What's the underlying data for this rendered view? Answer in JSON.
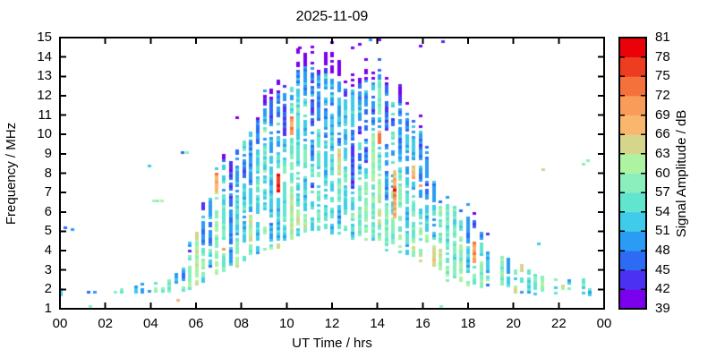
{
  "chart_data": {
    "type": "scatter",
    "title": "2025-11-09",
    "xlabel": "UT Time / hrs",
    "ylabel": "Frequency / MHz",
    "x_range": [
      0,
      24
    ],
    "y_range": [
      1,
      15
    ],
    "x_tick_labels": [
      "00",
      "02",
      "04",
      "06",
      "08",
      "10",
      "12",
      "14",
      "16",
      "18",
      "20",
      "22",
      "00"
    ],
    "y_tick_labels": [
      "1",
      "2",
      "3",
      "4",
      "5",
      "6",
      "7",
      "8",
      "9",
      "10",
      "11",
      "12",
      "13",
      "14",
      "15"
    ],
    "grid": false,
    "legend_position": "right-colorbar",
    "colorbar": {
      "label": "Signal Amplitude / dB",
      "min": 39,
      "max": 81,
      "step": 3,
      "tick_labels": [
        "39",
        "42",
        "45",
        "48",
        "51",
        "54",
        "57",
        "60",
        "63",
        "66",
        "69",
        "72",
        "75",
        "78",
        "81"
      ],
      "colors": [
        "#7b00ee",
        "#4b31f2",
        "#2e6bf5",
        "#2b9cf3",
        "#3fcbe9",
        "#62e5cf",
        "#8aefbd",
        "#adf3a2",
        "#d6d58c",
        "#f9b76d",
        "#f99c5a",
        "#f4713c",
        "#ee3c20",
        "#ea0109"
      ]
    },
    "envelope": {
      "comment": "ionosonde echo envelope vs UT time: min/max frequency (MHz) and relative density",
      "t": [
        0,
        0.5,
        1,
        1.5,
        2,
        2.5,
        3,
        3.5,
        4,
        4.5,
        5,
        5.5,
        6,
        6.5,
        7,
        7.5,
        8,
        8.5,
        9,
        9.5,
        10,
        10.5,
        11,
        11.5,
        12,
        12.5,
        13,
        13.5,
        14,
        14.5,
        15,
        15.5,
        16,
        16.3,
        16.6,
        17,
        17.5,
        18,
        18.5,
        19,
        19.5,
        20,
        20.5,
        21,
        21.5,
        22,
        22.5,
        23,
        23.5,
        24
      ],
      "fmin": [
        1.6,
        1.7,
        1.8,
        1.8,
        1.8,
        1.78,
        1.75,
        1.8,
        1.8,
        1.8,
        1.8,
        1.9,
        2.0,
        2.2,
        2.6,
        3.0,
        3.2,
        3.4,
        3.6,
        3.8,
        4.2,
        4.4,
        4.5,
        4.5,
        4.5,
        4.4,
        4.3,
        4.2,
        4.0,
        3.8,
        3.6,
        3.4,
        3.2,
        3.0,
        2.6,
        2.4,
        2.2,
        2.1,
        2.0,
        1.9,
        1.8,
        1.75,
        1.7,
        1.7,
        1.7,
        1.7,
        1.7,
        1.7,
        1.6,
        1.6
      ],
      "fmax": [
        2.1,
        2.0,
        2.0,
        2.05,
        2.05,
        2.1,
        2.1,
        2.3,
        2.35,
        2.4,
        2.5,
        3.4,
        5.5,
        7.0,
        8.6,
        9.6,
        10.6,
        11.3,
        12.4,
        13.2,
        13.8,
        14.6,
        14.8,
        14.4,
        14.2,
        13.8,
        13.6,
        14.0,
        14.2,
        13.6,
        12.8,
        12.0,
        11.2,
        10.0,
        7.6,
        7.2,
        6.8,
        6.4,
        5.6,
        4.8,
        4.0,
        3.4,
        3.2,
        3.0,
        2.8,
        2.6,
        2.6,
        2.5,
        2.4,
        2.3
      ],
      "density": [
        0.5,
        0.3,
        0.42,
        0.45,
        0.42,
        0.45,
        0.5,
        0.65,
        0.65,
        0.65,
        0.65,
        0.65,
        0.7,
        0.7,
        0.68,
        0.62,
        0.62,
        0.62,
        0.62,
        0.65,
        0.65,
        0.65,
        0.65,
        0.65,
        0.65,
        0.65,
        0.62,
        0.58,
        0.58,
        0.58,
        0.55,
        0.48,
        0.45,
        0.32,
        0.62,
        0.68,
        0.68,
        0.6,
        0.55,
        0.52,
        0.5,
        0.52,
        0.5,
        0.48,
        0.45,
        0.45,
        0.45,
        0.45,
        0.42,
        0.35
      ]
    },
    "outliers": [
      [
        0.25,
        5.1,
        47
      ],
      [
        0.55,
        5.0,
        49
      ],
      [
        1.33,
        1.05,
        57
      ],
      [
        3.95,
        8.3,
        53
      ],
      [
        4.15,
        6.5,
        60
      ],
      [
        4.3,
        6.5,
        58
      ],
      [
        4.5,
        6.5,
        60
      ],
      [
        5.2,
        1.35,
        68
      ],
      [
        5.4,
        9.0,
        47
      ],
      [
        5.6,
        9.0,
        57
      ],
      [
        10.57,
        14.4,
        40
      ],
      [
        13.7,
        14.8,
        50
      ],
      [
        15.9,
        14.5,
        40
      ],
      [
        16.8,
        1.05,
        57
      ],
      [
        16.9,
        14.7,
        42
      ],
      [
        21.1,
        4.3,
        53
      ],
      [
        21.3,
        8.1,
        64
      ],
      [
        23.1,
        8.4,
        58
      ],
      [
        23.3,
        8.6,
        58
      ]
    ],
    "warm_streak": {
      "comment": "orange echo column near 14.75 UT with red core at 7.1 MHz",
      "t": 14.75,
      "cells": [
        [
          5.65,
          66
        ],
        [
          5.79,
          69
        ],
        [
          5.93,
          64
        ],
        [
          6.07,
          70
        ],
        [
          6.21,
          67
        ],
        [
          6.35,
          71
        ],
        [
          6.49,
          66
        ],
        [
          6.63,
          69
        ],
        [
          6.77,
          72
        ],
        [
          6.91,
          70
        ],
        [
          7.05,
          79
        ],
        [
          7.19,
          73
        ],
        [
          7.33,
          68
        ],
        [
          7.47,
          66
        ],
        [
          7.61,
          70
        ],
        [
          7.75,
          65
        ],
        [
          7.89,
          68
        ],
        [
          8.03,
          64
        ]
      ]
    },
    "seed": 7,
    "point_size": {
      "w": 4,
      "h": 3
    },
    "time_step_hr": 0.299
  }
}
